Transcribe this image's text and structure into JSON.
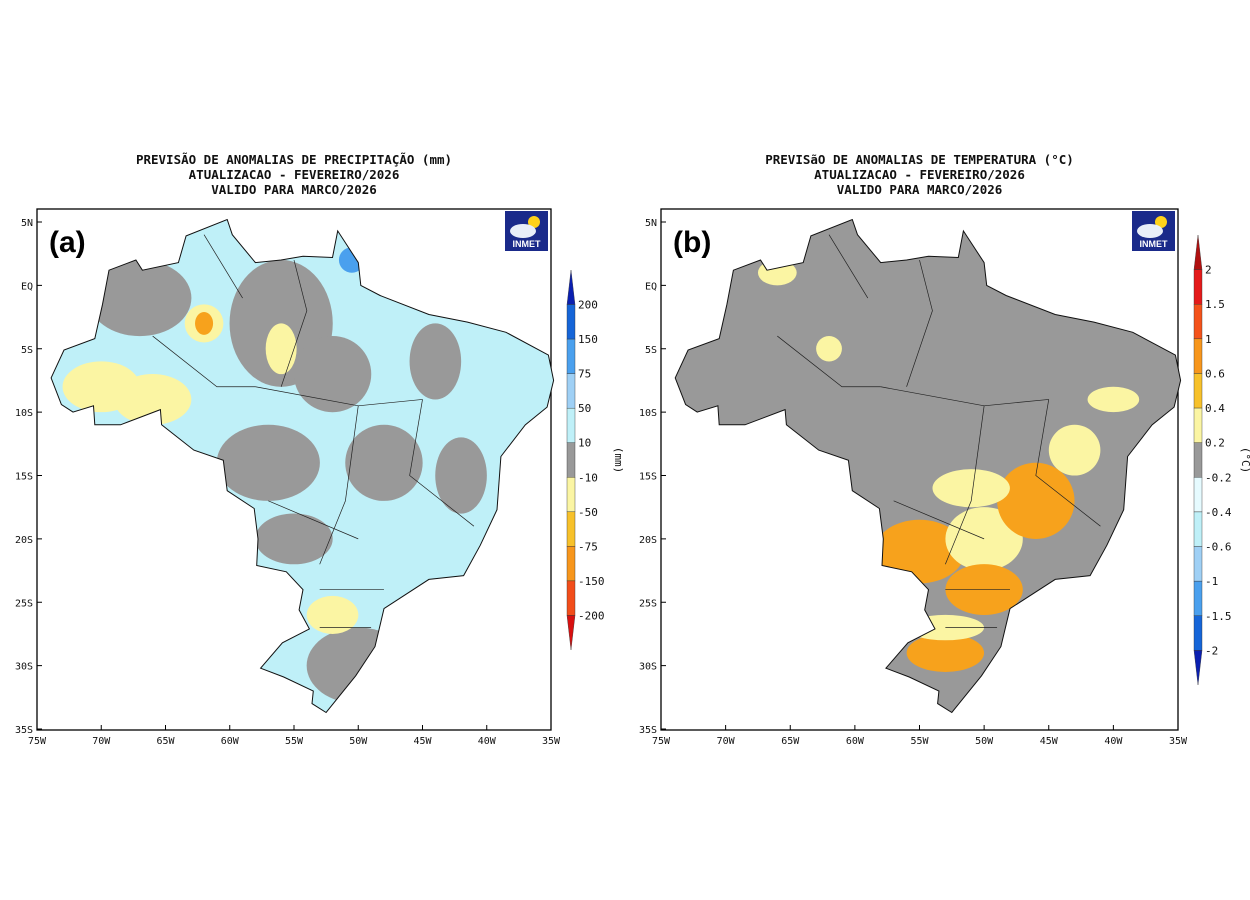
{
  "panels": [
    {
      "label": "(a)",
      "title": [
        "PREVISÃO DE ANOMALIAS DE PRECIPITAÇÃO (mm)",
        "ATUALIZACAO - FEVEREIRO/2026",
        "VALIDO PARA MARCO/2026"
      ],
      "logo_text": "INMET",
      "colorbar": {
        "unit": "(mm)",
        "levels": [
          "200",
          "150",
          "75",
          "50",
          "10",
          "-10",
          "-50",
          "-75",
          "-150",
          "-200"
        ],
        "colors": [
          "#0a1fb0",
          "#1565d8",
          "#4aa0ee",
          "#9fd0f5",
          "#bff0f8",
          "#999999",
          "#fbf5a3",
          "#f7c12a",
          "#f7961c",
          "#f24d1a",
          "#d81010"
        ]
      },
      "dominant_color": "#bff0f8",
      "secondary_color": "#999999"
    },
    {
      "label": "(b)",
      "title": [
        "PREVISãO DE ANOMALIAS DE TEMPERATURA (°C)",
        "ATUALIZACAO - FEVEREIRO/2026",
        "VALIDO PARA MARCO/2026"
      ],
      "logo_text": "INMET",
      "colorbar": {
        "unit": "(°C)",
        "levels": [
          "2",
          "1.5",
          "1",
          "0.6",
          "0.4",
          "0.2",
          "-0.2",
          "-0.4",
          "-0.6",
          "-1",
          "-1.5",
          "-2"
        ],
        "colors": [
          "#b01010",
          "#e41a1a",
          "#f4521a",
          "#f7961c",
          "#f7c12a",
          "#fbf5a3",
          "#999999",
          "#e6fbff",
          "#bff0f8",
          "#9fd0f5",
          "#4aa0ee",
          "#1565d8",
          "#0a1fb0"
        ]
      },
      "dominant_color": "#999999",
      "secondary_color": "#fbf5a3"
    }
  ],
  "axes": {
    "lat_ticks": [
      "5N",
      "EQ",
      "5S",
      "10S",
      "15S",
      "20S",
      "25S",
      "30S",
      "35S"
    ],
    "lon_ticks": [
      "75W",
      "70W",
      "65W",
      "60W",
      "55W",
      "50W",
      "45W",
      "40W",
      "35W"
    ]
  }
}
